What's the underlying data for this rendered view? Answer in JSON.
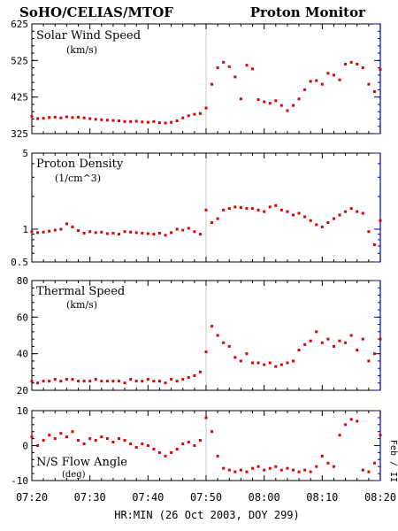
{
  "header": {
    "left_title": "SoHO/CELIAS/MTOF",
    "right_title": "Proton Monitor"
  },
  "xaxis": {
    "label": "HR:MIN (26 Oct 2003, DOY 299)",
    "ticks": [
      "07:20",
      "07:30",
      "07:40",
      "07:50",
      "08:00",
      "08:10",
      "08:20"
    ]
  },
  "side_label": "Feb / II",
  "colors": {
    "points": "#dd0000",
    "frame": "#000000",
    "right_axis": "#0000cc",
    "grid": "#c8c8c8"
  },
  "chart_data": [
    {
      "type": "scatter",
      "title": "Solar Wind Speed",
      "unit": "(km/s)",
      "ylim": [
        325,
        625
      ],
      "yticks": [
        "325",
        "425",
        "525",
        "625"
      ],
      "xlim": [
        0,
        60
      ],
      "x": [
        0,
        1,
        2,
        3,
        4,
        5,
        6,
        7,
        8,
        9,
        10,
        11,
        12,
        13,
        14,
        15,
        16,
        17,
        18,
        19,
        20,
        21,
        22,
        23,
        24,
        25,
        26,
        27,
        28,
        29,
        30,
        31,
        32,
        33,
        34,
        35,
        36,
        37,
        38,
        39,
        40,
        41,
        42,
        43,
        44,
        45,
        46,
        47,
        48,
        49,
        50,
        51,
        52,
        53,
        54,
        55,
        56,
        57,
        58,
        59,
        60
      ],
      "y": [
        372,
        366,
        367,
        369,
        370,
        368,
        371,
        369,
        370,
        368,
        366,
        364,
        363,
        362,
        361,
        360,
        358,
        358,
        359,
        357,
        356,
        358,
        355,
        354,
        356,
        360,
        368,
        374,
        378,
        380,
        395,
        460,
        505,
        520,
        508,
        480,
        420,
        512,
        502,
        418,
        412,
        408,
        415,
        402,
        388,
        402,
        420,
        445,
        468,
        470,
        460,
        490,
        485,
        472,
        515,
        520,
        515,
        505,
        460,
        440,
        500
      ]
    },
    {
      "type": "scatter",
      "title": "Proton Density",
      "unit": "(1/cm^3)",
      "ylim": [
        0.5,
        5
      ],
      "yscale": "log",
      "yticks": [
        "0.5",
        "1",
        "5"
      ],
      "xlim": [
        0,
        60
      ],
      "x": [
        0,
        1,
        2,
        3,
        4,
        5,
        6,
        7,
        8,
        9,
        10,
        11,
        12,
        13,
        14,
        15,
        16,
        17,
        18,
        19,
        20,
        21,
        22,
        23,
        24,
        25,
        26,
        27,
        28,
        29,
        30,
        31,
        32,
        33,
        34,
        35,
        36,
        37,
        38,
        39,
        40,
        41,
        42,
        43,
        44,
        45,
        46,
        47,
        48,
        49,
        50,
        51,
        52,
        53,
        54,
        55,
        56,
        57,
        58,
        59,
        60
      ],
      "y": [
        0.95,
        0.93,
        0.94,
        0.96,
        0.98,
        1.0,
        1.12,
        1.05,
        0.97,
        0.92,
        0.95,
        0.93,
        0.94,
        0.91,
        0.92,
        0.9,
        0.95,
        0.94,
        0.93,
        0.92,
        0.91,
        0.9,
        0.92,
        0.88,
        0.93,
        1.0,
        0.98,
        1.02,
        0.95,
        0.9,
        1.5,
        1.15,
        1.25,
        1.5,
        1.55,
        1.6,
        1.58,
        1.55,
        1.55,
        1.5,
        1.45,
        1.6,
        1.65,
        1.5,
        1.45,
        1.35,
        1.4,
        1.3,
        1.2,
        1.1,
        1.05,
        1.15,
        1.25,
        1.35,
        1.45,
        1.55,
        1.45,
        1.4,
        0.95,
        0.72,
        1.2
      ]
    },
    {
      "type": "scatter",
      "title": "Thermal Speed",
      "unit": "(km/s)",
      "ylim": [
        20,
        80
      ],
      "yticks": [
        "20",
        "40",
        "60",
        "80"
      ],
      "xlim": [
        0,
        60
      ],
      "x": [
        0,
        1,
        2,
        3,
        4,
        5,
        6,
        7,
        8,
        9,
        10,
        11,
        12,
        13,
        14,
        15,
        16,
        17,
        18,
        19,
        20,
        21,
        22,
        23,
        24,
        25,
        26,
        27,
        28,
        29,
        30,
        31,
        32,
        33,
        34,
        35,
        36,
        37,
        38,
        39,
        40,
        41,
        42,
        43,
        44,
        45,
        46,
        47,
        48,
        49,
        50,
        51,
        52,
        53,
        54,
        55,
        56,
        57,
        58,
        59,
        60
      ],
      "y": [
        25,
        24,
        25,
        25,
        26,
        25,
        26,
        26,
        25,
        25,
        25,
        26,
        25,
        25,
        25,
        25,
        24,
        26,
        25,
        25,
        26,
        25,
        25,
        24,
        26,
        25,
        26,
        27,
        28,
        30,
        41,
        55,
        50,
        46,
        44,
        38,
        36,
        40,
        35,
        35,
        34,
        35,
        33,
        34,
        35,
        36,
        42,
        45,
        47,
        52,
        46,
        48,
        44,
        47,
        46,
        50,
        42,
        48,
        36,
        40,
        48
      ]
    },
    {
      "type": "scatter",
      "title": "N/S Flow Angle",
      "unit": "(deg)",
      "ylim": [
        -10,
        10
      ],
      "yticks": [
        "-10",
        "0",
        "10"
      ],
      "xlim": [
        0,
        60
      ],
      "x": [
        0,
        1,
        2,
        3,
        4,
        5,
        6,
        7,
        8,
        9,
        10,
        11,
        12,
        13,
        14,
        15,
        16,
        17,
        18,
        19,
        20,
        21,
        22,
        23,
        24,
        25,
        26,
        27,
        28,
        29,
        30,
        31,
        32,
        33,
        34,
        35,
        36,
        37,
        38,
        39,
        40,
        41,
        42,
        43,
        44,
        45,
        46,
        47,
        48,
        49,
        50,
        51,
        52,
        53,
        54,
        55,
        56,
        57,
        58,
        59,
        60
      ],
      "y": [
        2.5,
        0,
        1.5,
        3,
        2,
        3.5,
        2.5,
        4,
        1.5,
        0.5,
        2,
        1.5,
        2.5,
        2,
        1,
        2,
        1.5,
        0.5,
        -0.5,
        0.5,
        0,
        -1,
        -2,
        -3,
        -2,
        -1,
        0.5,
        1,
        0,
        1.5,
        8,
        4,
        -3,
        -6.5,
        -7,
        -7.5,
        -7,
        -7.5,
        -6.5,
        -6,
        -7,
        -6.5,
        -6,
        -7,
        -6.5,
        -7,
        -7.5,
        -7,
        -7.5,
        -6,
        -3,
        -5,
        -6,
        3,
        6,
        7.5,
        7,
        -7,
        -7.5,
        -5,
        3
      ]
    }
  ]
}
